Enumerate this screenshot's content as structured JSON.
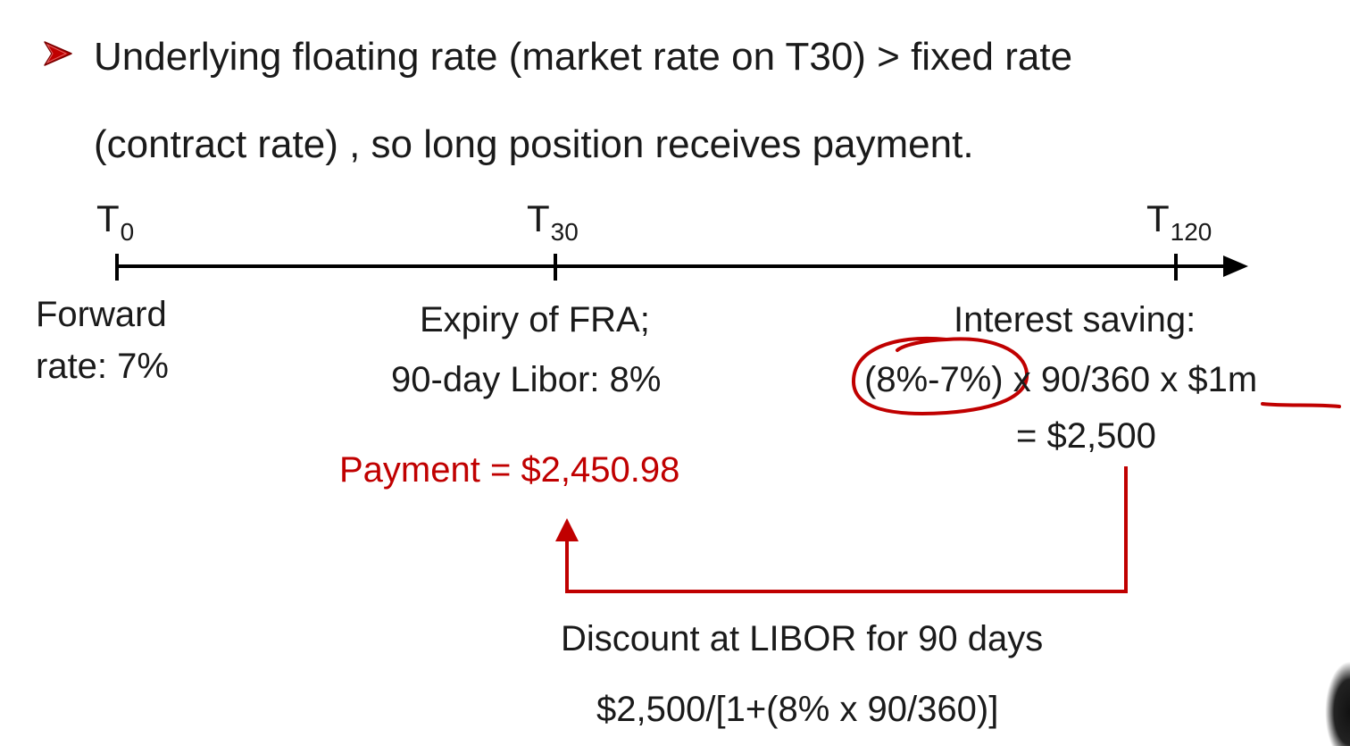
{
  "bullet": {
    "icon": "arrow-bullet-icon",
    "line1": "Underlying floating rate (market rate on T30) > fixed rate",
    "line2": "(contract rate) , so long position receives payment."
  },
  "timeline": {
    "points": [
      {
        "label": "T",
        "sub": "0"
      },
      {
        "label": "T",
        "sub": "30"
      },
      {
        "label": "T",
        "sub": "120"
      }
    ]
  },
  "t0_note": {
    "line1": "Forward",
    "line2": "rate: 7%"
  },
  "t30_note": {
    "line1": "Expiry of FRA;",
    "line2": "90-day Libor: 8%"
  },
  "t120_note": {
    "line1": "Interest saving:",
    "circled": "(8%-7%)",
    "rest": " x 90/360 x ",
    "underlined": "$1m",
    "line3": "= $2,500"
  },
  "payment": {
    "text": "Payment = $2,450.98"
  },
  "discount": {
    "line1": "Discount at LIBOR for 90 days",
    "line2": "$2,500/[1+(8% x 90/360)]"
  },
  "colors": {
    "accent": "#c00000",
    "text": "#1a1a1a",
    "timeline": "#000000"
  }
}
